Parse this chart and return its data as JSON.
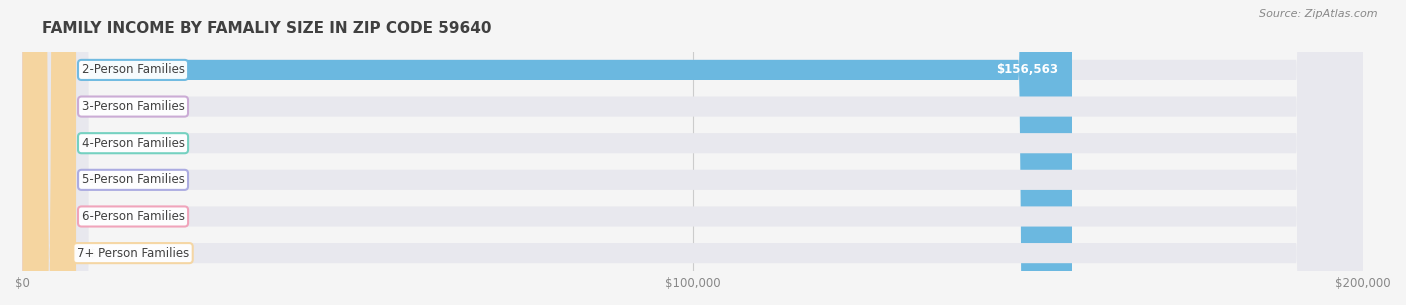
{
  "title": "FAMILY INCOME BY FAMALIY SIZE IN ZIP CODE 59640",
  "source": "Source: ZipAtlas.com",
  "categories": [
    "2-Person Families",
    "3-Person Families",
    "4-Person Families",
    "5-Person Families",
    "6-Person Families",
    "7+ Person Families"
  ],
  "values": [
    156563,
    0,
    0,
    0,
    0,
    0
  ],
  "bar_colors": [
    "#6bb8e0",
    "#c9a8d4",
    "#6ecfbe",
    "#a8a8e0",
    "#f0a0b8",
    "#f5d5a0"
  ],
  "xlim": [
    0,
    200000
  ],
  "xticks": [
    0,
    100000,
    200000
  ],
  "xtick_labels": [
    "$0",
    "$100,000",
    "$200,000"
  ],
  "background_color": "#f5f5f5",
  "bar_bg_color": "#e8e8ee",
  "label_bg_color": "#ffffff",
  "value_label_color": "#ffffff",
  "bar_height": 0.55,
  "label_fontsize": 8.5,
  "title_fontsize": 11,
  "source_fontsize": 8,
  "value_fontsize": 8.5,
  "title_color": "#404040",
  "tick_color": "#888888",
  "source_color": "#888888"
}
